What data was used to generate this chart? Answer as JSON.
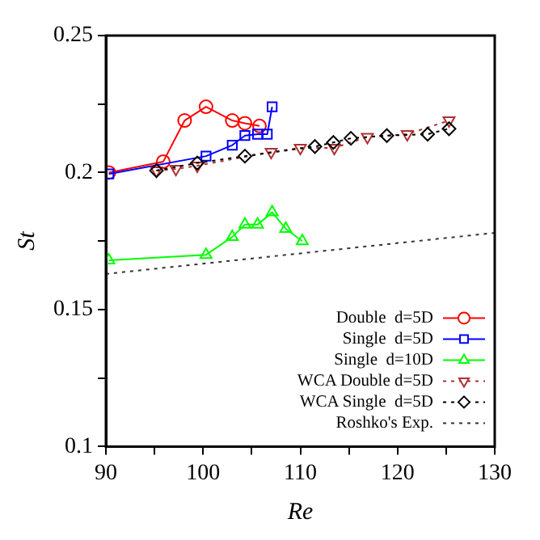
{
  "chart_data": {
    "type": "line",
    "xlabel": "Re",
    "ylabel": "St",
    "xlim": [
      90,
      130
    ],
    "ylim": [
      0.1,
      0.25
    ],
    "xticks": [
      90,
      {
        "value": 95,
        "label": null
      },
      100,
      {
        "value": 105,
        "label": null
      },
      110,
      {
        "value": 115,
        "label": null
      },
      120,
      {
        "value": 125,
        "label": null
      },
      130
    ],
    "yticks": [
      0.1,
      {
        "value": 0.125,
        "label": null
      },
      0.15,
      {
        "value": 0.175,
        "label": null
      },
      0.2,
      {
        "value": 0.225,
        "label": null
      },
      0.25
    ],
    "grid": false,
    "legend": "bottom right",
    "series": [
      {
        "name": "Double  d=5D",
        "color": "#ff0000",
        "marker": "circle",
        "line_style": "solid",
        "x": [
          90.3,
          95.9,
          98.1,
          100.3,
          103,
          104.3,
          105.8
        ],
        "values": [
          0.2,
          0.204,
          0.219,
          0.224,
          0.219,
          0.218,
          0.217
        ]
      },
      {
        "name": "Single  d=5D",
        "color": "#0000ff",
        "marker": "square",
        "line_style": "solid",
        "x": [
          90.3,
          100.3,
          103,
          104.3,
          105.6,
          106.6,
          107.1
        ],
        "values": [
          0.1995,
          0.206,
          0.21,
          0.2135,
          0.214,
          0.214,
          0.224
        ]
      },
      {
        "name": "Single  d=10D",
        "color": "#00ff00",
        "marker": "triangle",
        "line_style": "solid",
        "x": [
          90.3,
          100.3,
          103,
          104.3,
          105.6,
          107.1,
          108.5,
          110.2
        ],
        "values": [
          0.168,
          0.17,
          0.1765,
          0.181,
          0.181,
          0.1855,
          0.1795,
          0.175
        ]
      },
      {
        "name": "WCA Double d=5D",
        "color": "#b03030",
        "marker": "triangle-down",
        "line_style": "dotted",
        "x": [
          95.2,
          97.2,
          99.4,
          107,
          110,
          113.5,
          116.9,
          121,
          125.3
        ],
        "values": [
          0.2007,
          0.2013,
          0.2025,
          0.2075,
          0.209,
          0.209,
          0.213,
          0.214,
          0.219
        ]
      },
      {
        "name": "WCA Single  d=5D",
        "color": "#000000",
        "marker": "diamond",
        "line_style": "dotted",
        "x": [
          95.2,
          99.4,
          104.3,
          111.5,
          113.4,
          115.2,
          118.9,
          123.1,
          125.3
        ],
        "values": [
          0.2007,
          0.2035,
          0.206,
          0.2095,
          0.211,
          0.2125,
          0.2135,
          0.214,
          0.216
        ]
      },
      {
        "name": "Roshko's Exp.",
        "color": "#333333",
        "marker": "none",
        "line_style": "dotted",
        "x": [
          90,
          130
        ],
        "values": [
          0.163,
          0.178
        ]
      }
    ]
  }
}
